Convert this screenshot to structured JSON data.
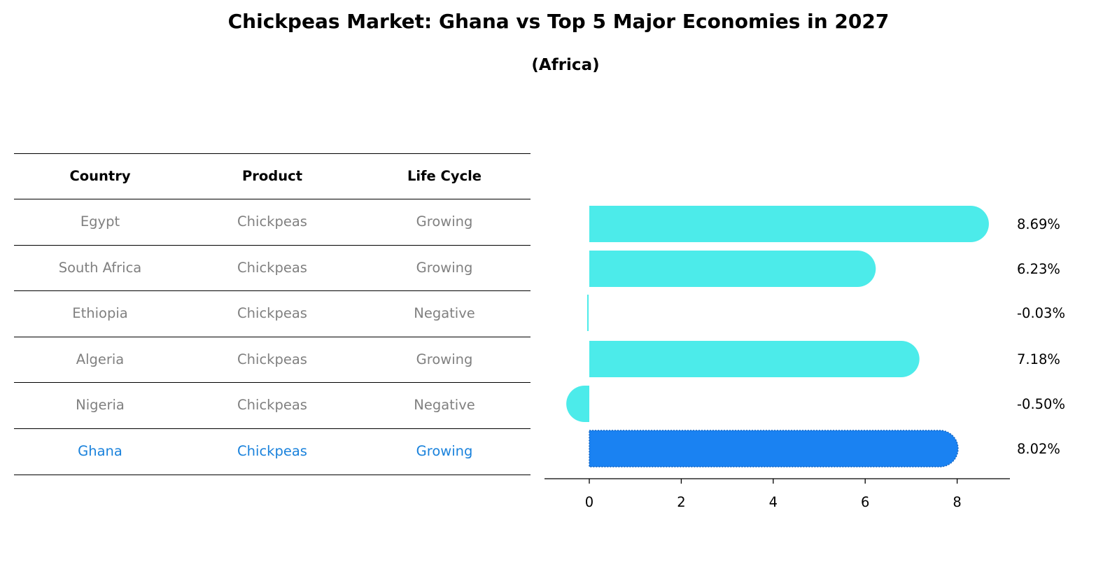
{
  "title": "Chickpeas Market: Ghana vs Top 5 Major Economies in 2027",
  "subtitle": "(Africa)",
  "table": {
    "headers": [
      "Country",
      "Product",
      "Life Cycle"
    ],
    "rows": [
      [
        "Egypt",
        "Chickpeas",
        "Growing"
      ],
      [
        "South Africa",
        "Chickpeas",
        "Growing"
      ],
      [
        "Ethiopia",
        "Chickpeas",
        "Negative"
      ],
      [
        "Algeria",
        "Chickpeas",
        "Growing"
      ],
      [
        "Nigeria",
        "Chickpeas",
        "Negative"
      ],
      [
        "Ghana",
        "Chickpeas",
        "Growing"
      ]
    ],
    "highlight_row": 5
  },
  "colors": {
    "bar": "#4cebea",
    "highlight_bar": "#1a82f2",
    "highlight_text": "#1a82dc",
    "muted_text": "#808080"
  },
  "chart_data": {
    "type": "bar",
    "orientation": "horizontal",
    "categories": [
      "Egypt",
      "South Africa",
      "Ethiopia",
      "Algeria",
      "Nigeria",
      "Ghana"
    ],
    "values": [
      8.69,
      6.23,
      -0.03,
      7.18,
      -0.5,
      8.02
    ],
    "value_labels": [
      "8.69%",
      "6.23%",
      "-0.03%",
      "7.18%",
      "-0.50%",
      "8.02%"
    ],
    "xticks": [
      0,
      2,
      4,
      6,
      8
    ],
    "xlim": [
      -1,
      9.1
    ],
    "highlight_index": 5
  }
}
